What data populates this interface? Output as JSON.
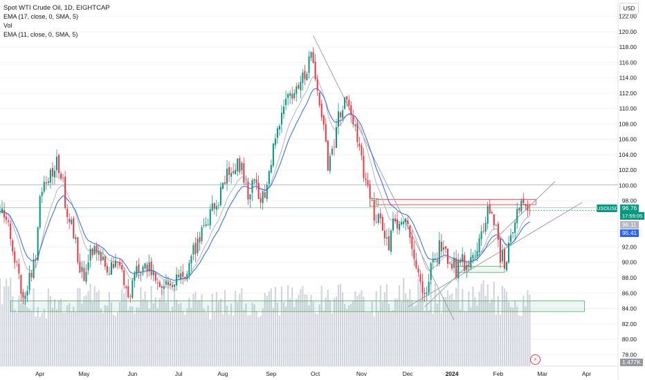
{
  "legend": {
    "title": "Spot WTI Crude Oil, 1D, EIGHTCAP",
    "ema1": "EMA (17, close, 0, SMA, 5)",
    "vol": "Vol",
    "ema2": "EMA (11, close, 0, SMA, 5)"
  },
  "currency_button": "USD",
  "symbol_tag": "USOUSD",
  "price_tags": {
    "last": "96.76",
    "countdown": "17:59:05",
    "ema_fast": "96.11",
    "ema_slow": "95.41",
    "volume": "1.477K"
  },
  "colors": {
    "up": "#089981",
    "down": "#f23645",
    "ema_fast": "#b2b5be",
    "ema_slow": "#2962ff",
    "volume_bar": "#d1d4dc"
  },
  "icons": {
    "alert": "lightning-icon"
  },
  "chart_data": {
    "type": "candlestick",
    "ylim": [
      76.5,
      122.5
    ],
    "y_ticks": [
      78,
      80,
      82,
      84,
      86,
      88,
      90,
      92,
      94,
      96,
      98,
      100,
      102,
      104,
      106,
      108,
      110,
      112,
      114,
      116,
      118,
      120,
      122
    ],
    "x_range": [
      -19,
      275
    ],
    "month_labels": [
      {
        "label": "Apr",
        "day": 0
      },
      {
        "label": "May",
        "day": 21
      },
      {
        "label": "Jun",
        "day": 44
      },
      {
        "label": "Jul",
        "day": 66
      },
      {
        "label": "Aug",
        "day": 87
      },
      {
        "label": "Sep",
        "day": 110
      },
      {
        "label": "Oct",
        "day": 131
      },
      {
        "label": "Nov",
        "day": 153
      },
      {
        "label": "Dec",
        "day": 175
      },
      {
        "label": "2024",
        "day": 196
      },
      {
        "label": "Feb",
        "day": 218
      },
      {
        "label": "Mar",
        "day": 239
      },
      {
        "label": "Apr",
        "day": 260
      }
    ],
    "close_path": [
      {
        "day": -19,
        "close": 96.5
      },
      {
        "day": -14,
        "close": 94
      },
      {
        "day": -11,
        "close": 89
      },
      {
        "day": -8,
        "close": 86
      },
      {
        "day": -5,
        "close": 88
      },
      {
        "day": -2,
        "close": 91
      },
      {
        "day": 0,
        "close": 99
      },
      {
        "day": 4,
        "close": 100
      },
      {
        "day": 6,
        "close": 102
      },
      {
        "day": 8,
        "close": 103.5
      },
      {
        "day": 11,
        "close": 100
      },
      {
        "day": 13,
        "close": 96
      },
      {
        "day": 17,
        "close": 93
      },
      {
        "day": 19,
        "close": 89
      },
      {
        "day": 21,
        "close": 88
      },
      {
        "day": 23,
        "close": 91
      },
      {
        "day": 27,
        "close": 92
      },
      {
        "day": 30,
        "close": 90
      },
      {
        "day": 33,
        "close": 89
      },
      {
        "day": 36,
        "close": 91
      },
      {
        "day": 40,
        "close": 88
      },
      {
        "day": 42,
        "close": 85
      },
      {
        "day": 44,
        "close": 88
      },
      {
        "day": 48,
        "close": 89
      },
      {
        "day": 52,
        "close": 89.5
      },
      {
        "day": 55,
        "close": 88
      },
      {
        "day": 57,
        "close": 86
      },
      {
        "day": 60,
        "close": 88
      },
      {
        "day": 64,
        "close": 87
      },
      {
        "day": 66,
        "close": 88
      },
      {
        "day": 70,
        "close": 89
      },
      {
        "day": 74,
        "close": 92
      },
      {
        "day": 78,
        "close": 95
      },
      {
        "day": 82,
        "close": 97
      },
      {
        "day": 86,
        "close": 99
      },
      {
        "day": 90,
        "close": 102
      },
      {
        "day": 93,
        "close": 103
      },
      {
        "day": 96,
        "close": 102
      },
      {
        "day": 99,
        "close": 99
      },
      {
        "day": 102,
        "close": 100
      },
      {
        "day": 105,
        "close": 98.5
      },
      {
        "day": 108,
        "close": 100
      },
      {
        "day": 110,
        "close": 103
      },
      {
        "day": 113,
        "close": 108
      },
      {
        "day": 116,
        "close": 110
      },
      {
        "day": 120,
        "close": 112
      },
      {
        "day": 124,
        "close": 114
      },
      {
        "day": 127,
        "close": 115
      },
      {
        "day": 129,
        "close": 118
      },
      {
        "day": 131,
        "close": 114
      },
      {
        "day": 133,
        "close": 111
      },
      {
        "day": 135,
        "close": 107
      },
      {
        "day": 137,
        "close": 103
      },
      {
        "day": 139,
        "close": 104
      },
      {
        "day": 141,
        "close": 108
      },
      {
        "day": 144,
        "close": 110
      },
      {
        "day": 146,
        "close": 112
      },
      {
        "day": 148,
        "close": 110
      },
      {
        "day": 150,
        "close": 107
      },
      {
        "day": 153,
        "close": 103
      },
      {
        "day": 155,
        "close": 101
      },
      {
        "day": 157,
        "close": 98
      },
      {
        "day": 159,
        "close": 96
      },
      {
        "day": 163,
        "close": 95
      },
      {
        "day": 166,
        "close": 92
      },
      {
        "day": 169,
        "close": 96
      },
      {
        "day": 171,
        "close": 95
      },
      {
        "day": 174,
        "close": 96
      },
      {
        "day": 176,
        "close": 93
      },
      {
        "day": 178,
        "close": 91
      },
      {
        "day": 180,
        "close": 88
      },
      {
        "day": 182,
        "close": 86
      },
      {
        "day": 184,
        "close": 85.5
      },
      {
        "day": 186,
        "close": 89
      },
      {
        "day": 188,
        "close": 90
      },
      {
        "day": 190,
        "close": 92
      },
      {
        "day": 193,
        "close": 91
      },
      {
        "day": 196,
        "close": 90
      },
      {
        "day": 198,
        "close": 89
      },
      {
        "day": 200,
        "close": 91
      },
      {
        "day": 202,
        "close": 90
      },
      {
        "day": 205,
        "close": 90
      },
      {
        "day": 207,
        "close": 91
      },
      {
        "day": 209,
        "close": 93
      },
      {
        "day": 211,
        "close": 95
      },
      {
        "day": 213,
        "close": 97
      },
      {
        "day": 215,
        "close": 96
      },
      {
        "day": 217,
        "close": 94
      },
      {
        "day": 219,
        "close": 91
      },
      {
        "day": 221,
        "close": 90
      },
      {
        "day": 223,
        "close": 92
      },
      {
        "day": 225,
        "close": 94
      },
      {
        "day": 227,
        "close": 96
      },
      {
        "day": 229,
        "close": 98
      },
      {
        "day": 231,
        "close": 97.5
      },
      {
        "day": 233,
        "close": 96.76
      }
    ],
    "volume_profile": [
      {
        "day": -19,
        "volume": 1.7
      },
      {
        "day": 0,
        "volume": 1.4
      },
      {
        "day": 20,
        "volume": 1.6
      },
      {
        "day": 40,
        "volume": 1.4
      },
      {
        "day": 60,
        "volume": 1.5
      },
      {
        "day": 80,
        "volume": 1.4
      },
      {
        "day": 100,
        "volume": 1.45
      },
      {
        "day": 120,
        "volume": 1.5
      },
      {
        "day": 140,
        "volume": 1.55
      },
      {
        "day": 160,
        "volume": 1.5
      },
      {
        "day": 175,
        "volume": 1.7
      },
      {
        "day": 190,
        "volume": 1.55
      },
      {
        "day": 205,
        "volume": 1.65
      },
      {
        "day": 220,
        "volume": 1.5
      },
      {
        "day": 233,
        "volume": 1.477
      }
    ],
    "volume_max": 2.2,
    "ema_periods": [
      11,
      17
    ],
    "drawings": {
      "trendlines": [
        {
          "from": [
            130,
            119.5
          ],
          "to": [
            197,
            82.5
          ]
        },
        {
          "from": [
            183,
            84.2
          ],
          "to": [
            245,
            100.5
          ]
        },
        {
          "from": [
            175,
            84.2
          ],
          "to": [
            258,
            97.8
          ]
        }
      ],
      "horizontal_lines": [
        {
          "y": 100.1
        },
        {
          "y": 97.1
        }
      ],
      "zones": [
        {
          "x1": -14,
          "x2": 259,
          "y1": 83.6,
          "y2": 85.0,
          "kind": "support"
        },
        {
          "x1": 198,
          "x2": 221,
          "y1": 88.7,
          "y2": 89.5,
          "kind": "support"
        },
        {
          "x1": 160,
          "x2": 236,
          "y1": 97.5,
          "y2": 98.2,
          "kind": "resistance"
        },
        {
          "x1": 157,
          "x2": 161,
          "y1": 97.3,
          "y2": 98.3,
          "kind": "support"
        }
      ]
    }
  }
}
